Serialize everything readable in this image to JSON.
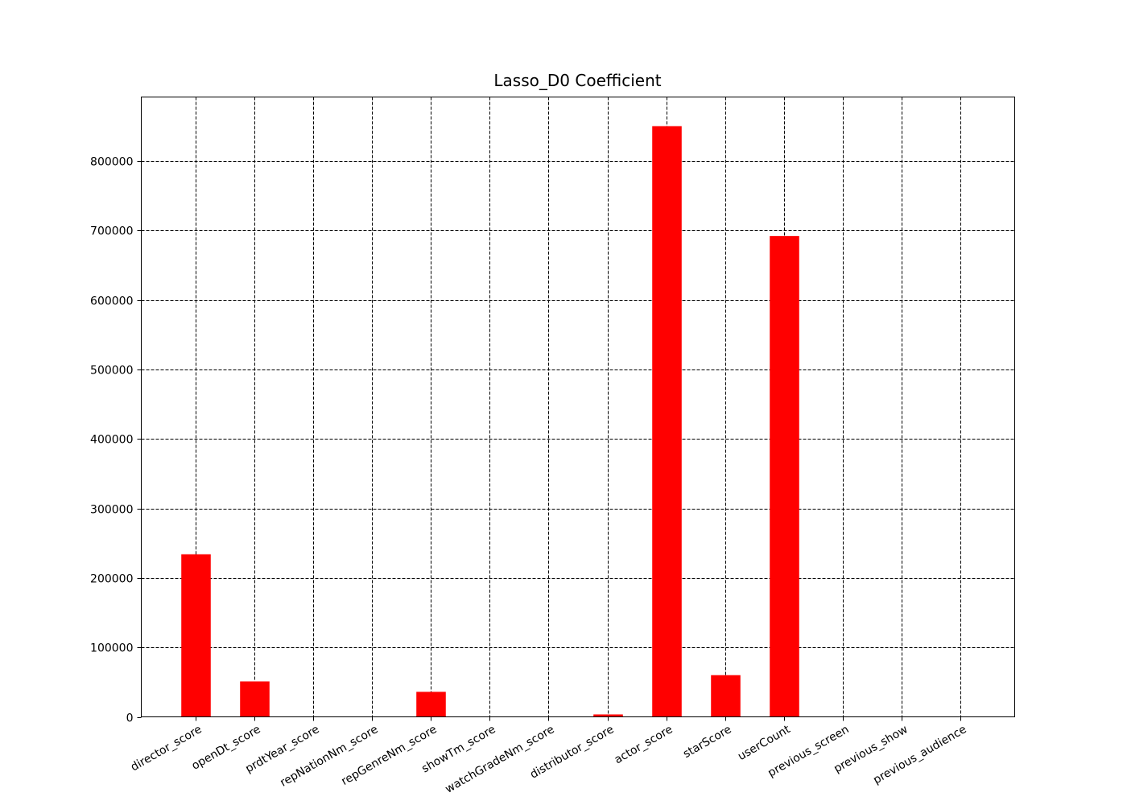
{
  "chart_data": {
    "type": "bar",
    "title": "Lasso_D0 Coefficient",
    "xlabel": "",
    "ylabel": "",
    "categories": [
      "director_score",
      "openDt_score",
      "prdtYear_score",
      "repNationNm_score",
      "repGenreNm_score",
      "showTm_score",
      "watchGradeNm_score",
      "distributor_score",
      "actor_score",
      "starScore",
      "userCount",
      "previous_screen",
      "previous_show",
      "previous_audience"
    ],
    "values": [
      234000,
      51000,
      0,
      0,
      36000,
      0,
      0,
      3500,
      850000,
      60000,
      692000,
      0,
      0,
      0
    ],
    "ylim": [
      0,
      892000
    ],
    "yticks": [
      0,
      100000,
      200000,
      300000,
      400000,
      500000,
      600000,
      700000,
      800000
    ],
    "bar_color": "#ff0000",
    "grid": true,
    "legend": "none"
  }
}
